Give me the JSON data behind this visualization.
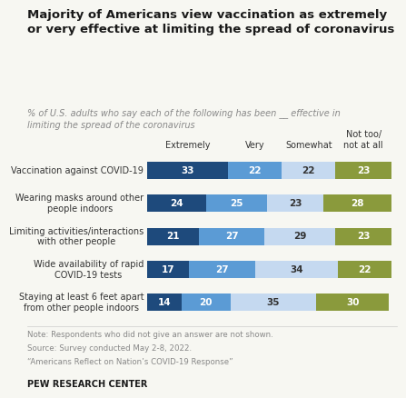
{
  "title": "Majority of Americans view vaccination as extremely\nor very effective at limiting the spread of coronavirus",
  "subtitle": "% of U.S. adults who say each of the following has been __ effective in\nlimiting the spread of the coronavirus",
  "categories": [
    "Vaccination against COVID-19",
    "Wearing masks around other\npeople indoors",
    "Limiting activities/interactions\nwith other people",
    "Wide availability of rapid\nCOVID-19 tests",
    "Staying at least 6 feet apart\nfrom other people indoors"
  ],
  "values": [
    [
      33,
      22,
      22,
      23
    ],
    [
      24,
      25,
      23,
      28
    ],
    [
      21,
      27,
      29,
      23
    ],
    [
      17,
      27,
      34,
      22
    ],
    [
      14,
      20,
      35,
      30
    ]
  ],
  "colors": [
    "#1e4a7c",
    "#5b9bd5",
    "#c5d9f0",
    "#8a9a3c"
  ],
  "text_colors": [
    "white",
    "white",
    "#333333",
    "white"
  ],
  "col_headers": [
    "Extremely",
    "Very",
    "Somewhat",
    "Not too/\nnot at all"
  ],
  "note_lines": [
    "Note: Respondents who did not give an answer are not shown.",
    "Source: Survey conducted May 2-8, 2022.",
    "“Americans Reflect on Nation’s COVID-19 Response”"
  ],
  "footer": "PEW RESEARCH CENTER",
  "background_color": "#f7f7f2"
}
